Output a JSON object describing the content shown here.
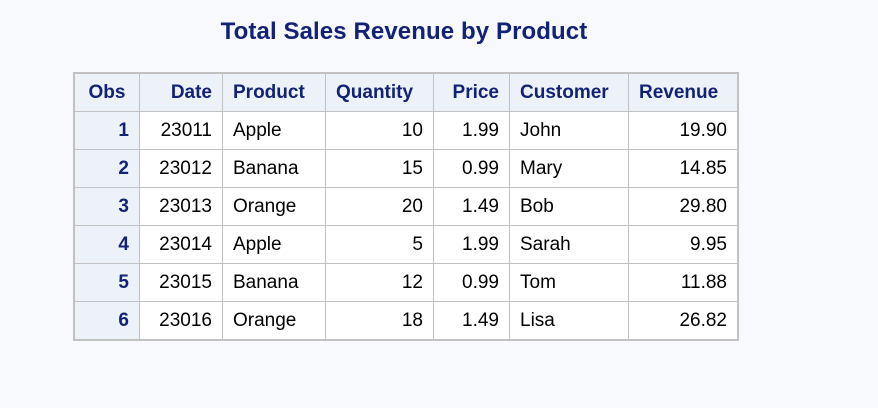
{
  "report": {
    "title": "Total Sales Revenue by Product",
    "columns": [
      "Obs",
      "Date",
      "Product",
      "Quantity",
      "Price",
      "Customer",
      "Revenue"
    ],
    "rows": [
      {
        "obs": "1",
        "date": "23011",
        "product": "Apple",
        "quantity": "10",
        "price": "1.99",
        "customer": "John",
        "revenue": "19.90"
      },
      {
        "obs": "2",
        "date": "23012",
        "product": "Banana",
        "quantity": "15",
        "price": "0.99",
        "customer": "Mary",
        "revenue": "14.85"
      },
      {
        "obs": "3",
        "date": "23013",
        "product": "Orange",
        "quantity": "20",
        "price": "1.49",
        "customer": "Bob",
        "revenue": "29.80"
      },
      {
        "obs": "4",
        "date": "23014",
        "product": "Apple",
        "quantity": "5",
        "price": "1.99",
        "customer": "Sarah",
        "revenue": "9.95"
      },
      {
        "obs": "5",
        "date": "23015",
        "product": "Banana",
        "quantity": "12",
        "price": "0.99",
        "customer": "Tom",
        "revenue": "11.88"
      },
      {
        "obs": "6",
        "date": "23016",
        "product": "Orange",
        "quantity": "18",
        "price": "1.49",
        "customer": "Lisa",
        "revenue": "26.82"
      }
    ]
  },
  "colors": {
    "page_background": "#f8f9fd",
    "title_text": "#112277",
    "header_background": "#edf2f9",
    "grid_border": "#c1c1c1"
  }
}
